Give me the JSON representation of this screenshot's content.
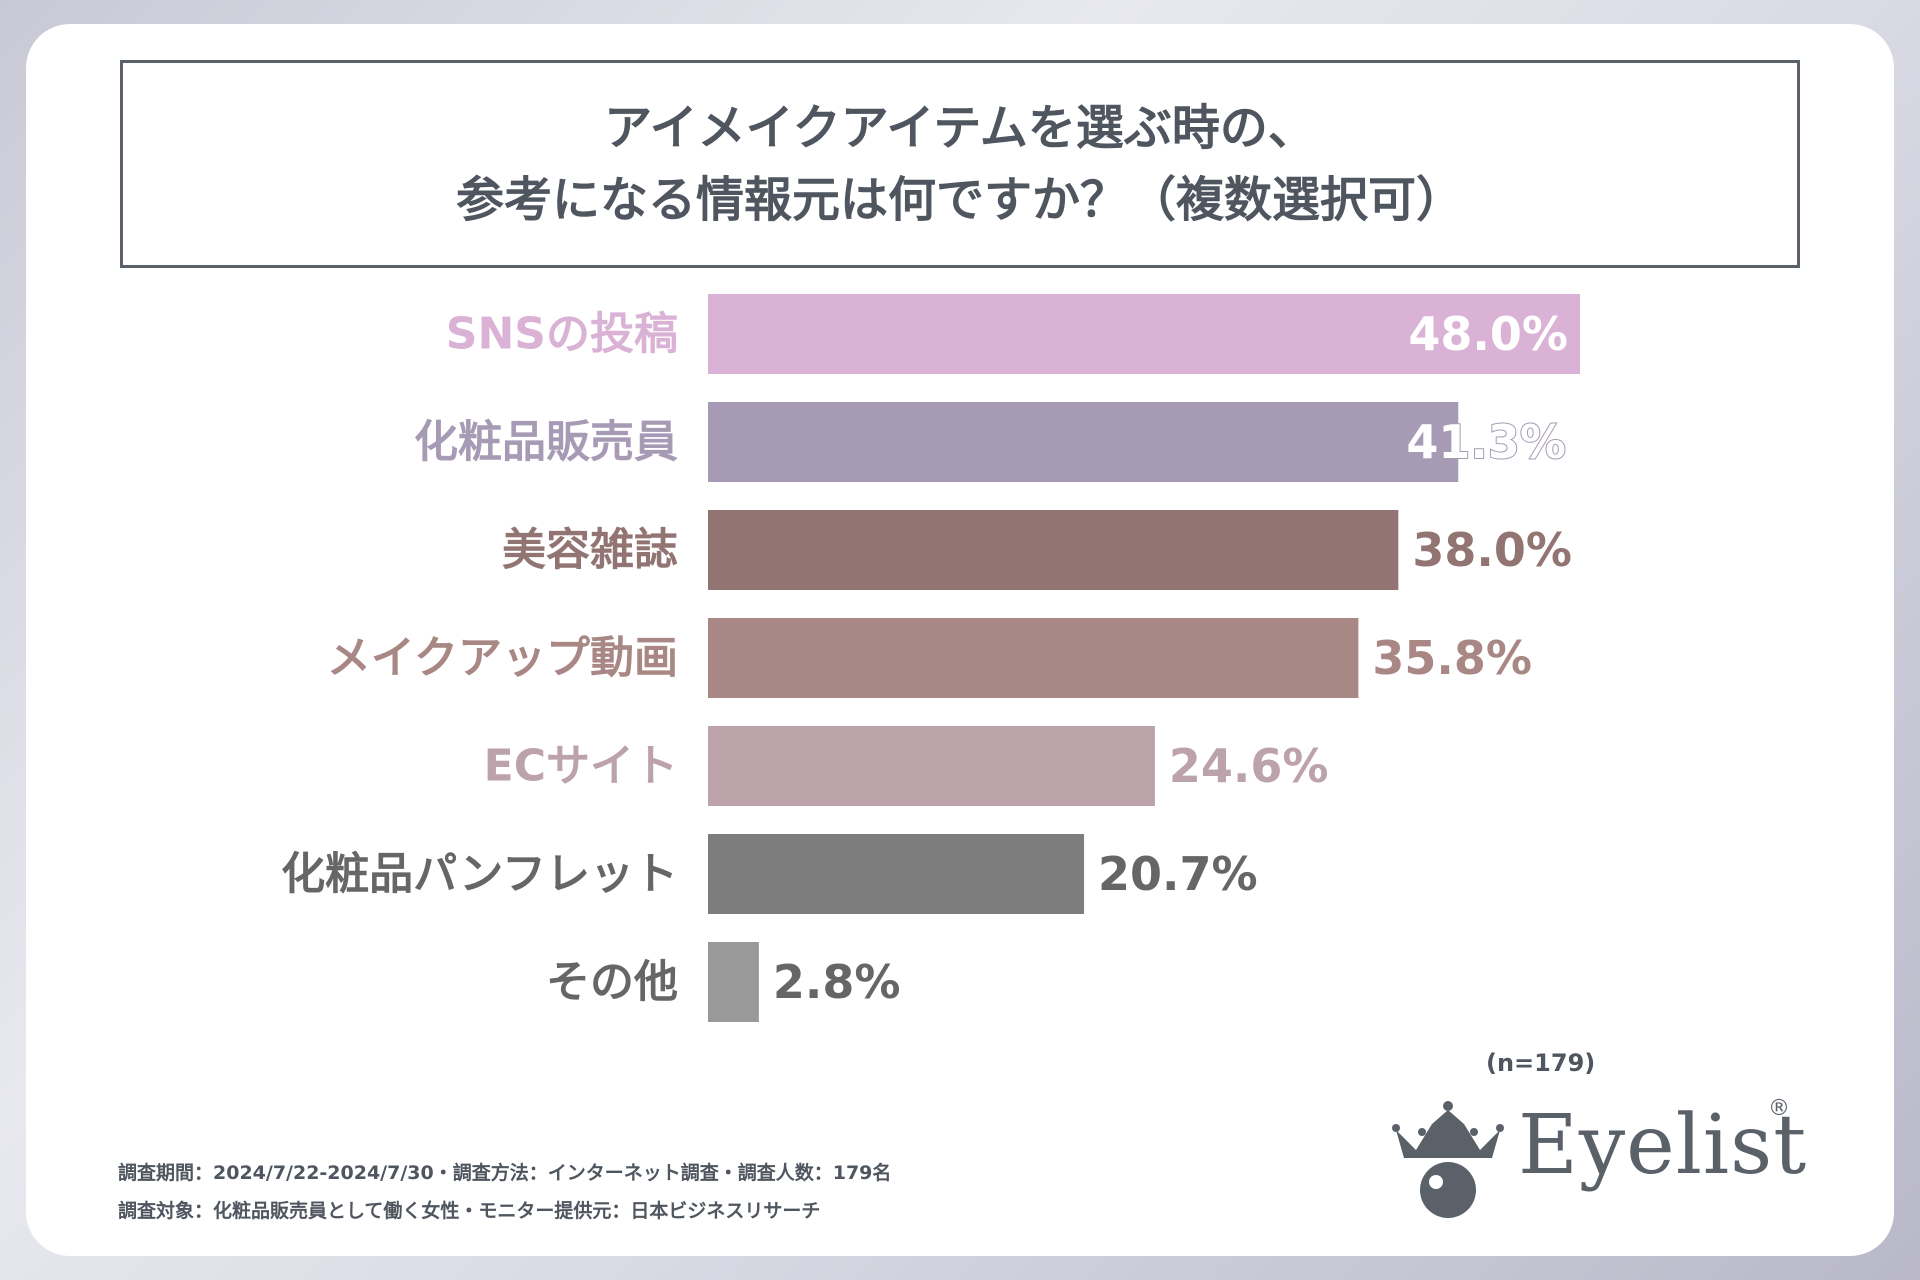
{
  "title": {
    "line1": "アイメイクアイテムを選ぶ時の、",
    "line2": "参考になる情報元は何ですか？（複数選択可）"
  },
  "chart_data": {
    "type": "bar",
    "orientation": "horizontal",
    "title": "アイメイクアイテムを選ぶ時の、参考になる情報元は何ですか？（複数選択可）",
    "categories": [
      "SNSの投稿",
      "化粧品販売員",
      "美容雑誌",
      "メイクアップ動画",
      "ECサイト",
      "化粧品パンフレット",
      "その他"
    ],
    "values": [
      48.0,
      41.3,
      38.0,
      35.8,
      24.6,
      20.7,
      2.8
    ],
    "value_labels": [
      "48.0%",
      "41.3%",
      "38.0%",
      "35.8%",
      "24.6%",
      "20.7%",
      "2.8%"
    ],
    "bar_colors": [
      "#dab2d5",
      "#a69ab4",
      "#927473",
      "#a88784",
      "#bca3aa",
      "#7d7d7d",
      "#999999"
    ],
    "label_colors": [
      "#dab2d5",
      "#a69ab4",
      "#927473",
      "#a88784",
      "#bca3aa",
      "#666666",
      "#666666"
    ],
    "xlim": [
      0,
      48.0
    ],
    "xlabel": "",
    "ylabel": ""
  },
  "sample_size": "(n=179)",
  "footnotes": {
    "line1": "調査期間：2024/7/22-2024/7/30・調査方法：インターネット調査・調査人数：179名",
    "line2": "調査対象：化粧品販売員として働く女性・モニター提供元：日本ビジネスリサーチ"
  },
  "logo": {
    "text": "Eyelist",
    "mark": "®"
  },
  "colors": {
    "text_dark": "#4f565f",
    "white": "#ffffff"
  }
}
